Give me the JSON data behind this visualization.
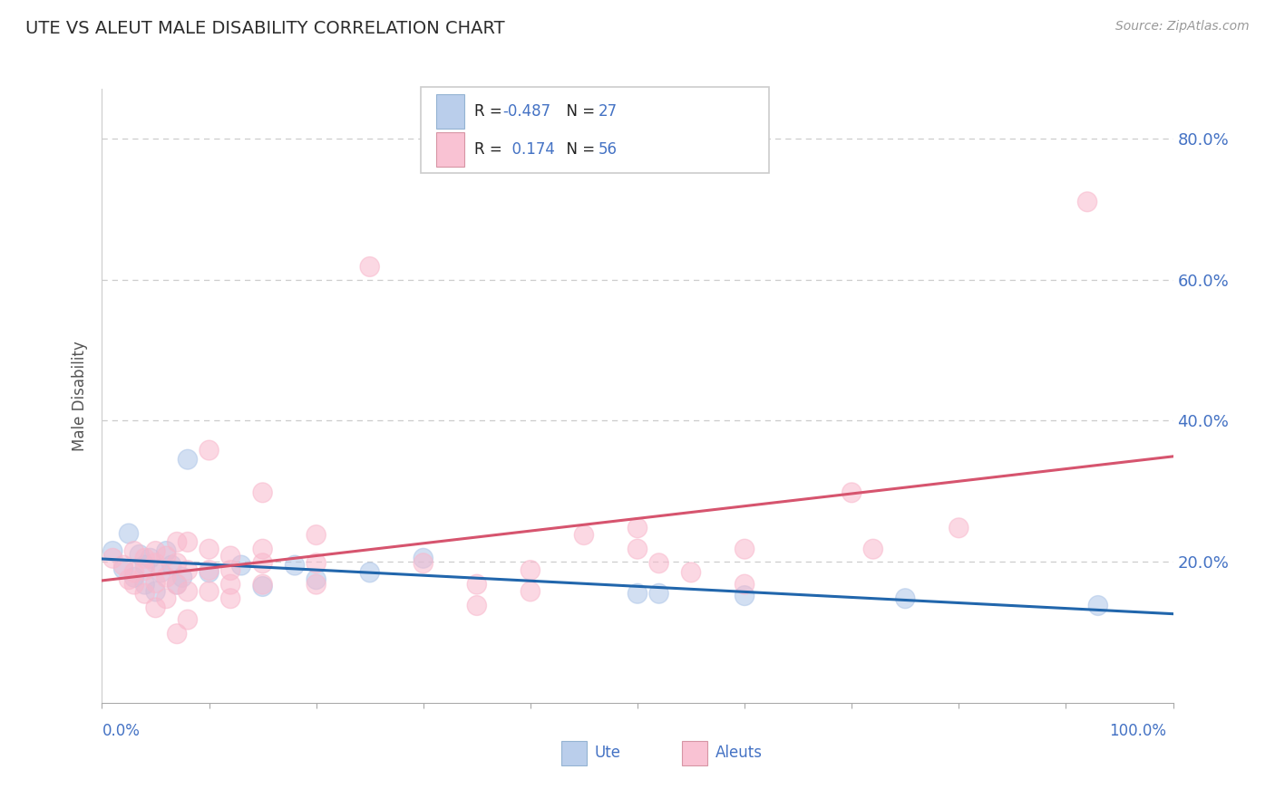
{
  "title": "UTE VS ALEUT MALE DISABILITY CORRELATION CHART",
  "source": "Source: ZipAtlas.com",
  "ylabel": "Male Disability",
  "ute_color": "#aec6e8",
  "aleut_color": "#f9b8cc",
  "ute_line_color": "#2166ac",
  "aleut_line_color": "#d6546e",
  "legend_text_color": "#4472c4",
  "R_label_color": "#333333",
  "ute_R": -0.487,
  "ute_N": 27,
  "aleut_R": 0.174,
  "aleut_N": 56,
  "ute_points": [
    [
      0.01,
      0.215
    ],
    [
      0.02,
      0.19
    ],
    [
      0.025,
      0.24
    ],
    [
      0.03,
      0.178
    ],
    [
      0.035,
      0.21
    ],
    [
      0.04,
      0.195
    ],
    [
      0.04,
      0.168
    ],
    [
      0.045,
      0.205
    ],
    [
      0.05,
      0.158
    ],
    [
      0.055,
      0.185
    ],
    [
      0.06,
      0.215
    ],
    [
      0.065,
      0.195
    ],
    [
      0.07,
      0.168
    ],
    [
      0.075,
      0.178
    ],
    [
      0.08,
      0.345
    ],
    [
      0.1,
      0.185
    ],
    [
      0.13,
      0.195
    ],
    [
      0.15,
      0.165
    ],
    [
      0.18,
      0.195
    ],
    [
      0.2,
      0.175
    ],
    [
      0.25,
      0.185
    ],
    [
      0.3,
      0.205
    ],
    [
      0.5,
      0.155
    ],
    [
      0.52,
      0.155
    ],
    [
      0.6,
      0.152
    ],
    [
      0.75,
      0.148
    ],
    [
      0.93,
      0.138
    ]
  ],
  "aleut_points": [
    [
      0.01,
      0.205
    ],
    [
      0.02,
      0.195
    ],
    [
      0.025,
      0.175
    ],
    [
      0.03,
      0.215
    ],
    [
      0.03,
      0.185
    ],
    [
      0.03,
      0.168
    ],
    [
      0.04,
      0.205
    ],
    [
      0.04,
      0.188
    ],
    [
      0.04,
      0.155
    ],
    [
      0.05,
      0.215
    ],
    [
      0.05,
      0.198
    ],
    [
      0.05,
      0.17
    ],
    [
      0.05,
      0.135
    ],
    [
      0.06,
      0.208
    ],
    [
      0.06,
      0.178
    ],
    [
      0.06,
      0.148
    ],
    [
      0.07,
      0.228
    ],
    [
      0.07,
      0.198
    ],
    [
      0.07,
      0.168
    ],
    [
      0.07,
      0.098
    ],
    [
      0.08,
      0.228
    ],
    [
      0.08,
      0.188
    ],
    [
      0.08,
      0.158
    ],
    [
      0.08,
      0.118
    ],
    [
      0.1,
      0.358
    ],
    [
      0.1,
      0.218
    ],
    [
      0.1,
      0.188
    ],
    [
      0.1,
      0.158
    ],
    [
      0.12,
      0.208
    ],
    [
      0.12,
      0.188
    ],
    [
      0.12,
      0.168
    ],
    [
      0.12,
      0.148
    ],
    [
      0.15,
      0.298
    ],
    [
      0.15,
      0.218
    ],
    [
      0.15,
      0.198
    ],
    [
      0.15,
      0.168
    ],
    [
      0.2,
      0.238
    ],
    [
      0.2,
      0.198
    ],
    [
      0.2,
      0.168
    ],
    [
      0.25,
      0.618
    ],
    [
      0.3,
      0.198
    ],
    [
      0.35,
      0.168
    ],
    [
      0.35,
      0.138
    ],
    [
      0.4,
      0.188
    ],
    [
      0.4,
      0.158
    ],
    [
      0.45,
      0.238
    ],
    [
      0.5,
      0.248
    ],
    [
      0.5,
      0.218
    ],
    [
      0.52,
      0.198
    ],
    [
      0.55,
      0.185
    ],
    [
      0.6,
      0.218
    ],
    [
      0.6,
      0.168
    ],
    [
      0.7,
      0.298
    ],
    [
      0.72,
      0.218
    ],
    [
      0.8,
      0.248
    ],
    [
      0.92,
      0.71
    ]
  ],
  "background_color": "#ffffff",
  "grid_color": "#cccccc",
  "title_color": "#2d2d2d",
  "axis_label_color": "#4472c4",
  "y_tick_values": [
    0.0,
    0.2,
    0.4,
    0.6,
    0.8
  ],
  "y_tick_labels": [
    "",
    "20.0%",
    "40.0%",
    "60.0%",
    "80.0%"
  ]
}
